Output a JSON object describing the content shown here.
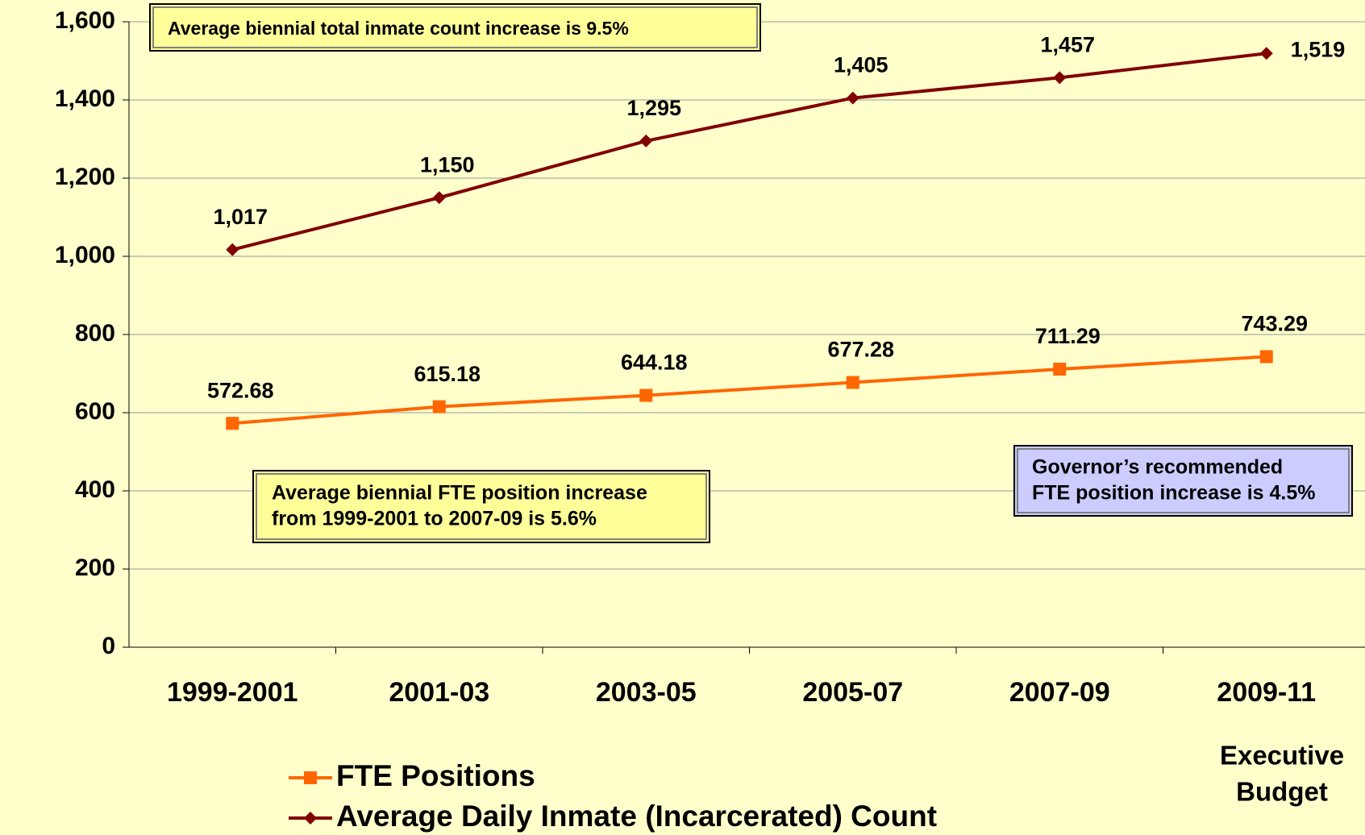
{
  "chart_data": {
    "type": "line",
    "categories": [
      "1999-2001",
      "2001-03",
      "2003-05",
      "2005-07",
      "2007-09",
      "2009-11"
    ],
    "series": [
      {
        "name": "FTE Positions",
        "color": "#ff6600",
        "marker": "square",
        "values": [
          572.68,
          615.18,
          644.18,
          677.28,
          711.29,
          743.29
        ]
      },
      {
        "name": "Average Daily Inmate (Incarcerated) Count",
        "color": "#800000",
        "marker": "diamond",
        "values": [
          1017,
          1150,
          1295,
          1405,
          1457,
          1519
        ],
        "value_labels": [
          "1,017",
          "1,150",
          "1,295",
          "1,405",
          "1,457",
          "1,519"
        ]
      }
    ],
    "ylim": [
      0,
      1600
    ],
    "yticks": [
      0,
      200,
      400,
      600,
      800,
      {
        "value": 1000,
        "label": "1,000"
      },
      {
        "value": 1200,
        "label": "1,200"
      },
      {
        "value": 1400,
        "label": "1,400"
      },
      {
        "value": 1600,
        "label": "1,600"
      }
    ],
    "grid": true,
    "annotations": [
      {
        "lines": [
          "Average biennial total inmate count increase is 9.5%"
        ],
        "color": "#ffff99"
      },
      {
        "lines": [
          "Average biennial FTE position increase",
          "from 1999-2001 to 2007-09 is 5.6%"
        ],
        "color": "#ffff99"
      },
      {
        "lines": [
          "Governor’s recommended",
          "FTE position increase is 4.5%"
        ],
        "color": "#ccccff"
      },
      {
        "lines": [
          "Executive",
          "Budget"
        ]
      }
    ]
  }
}
